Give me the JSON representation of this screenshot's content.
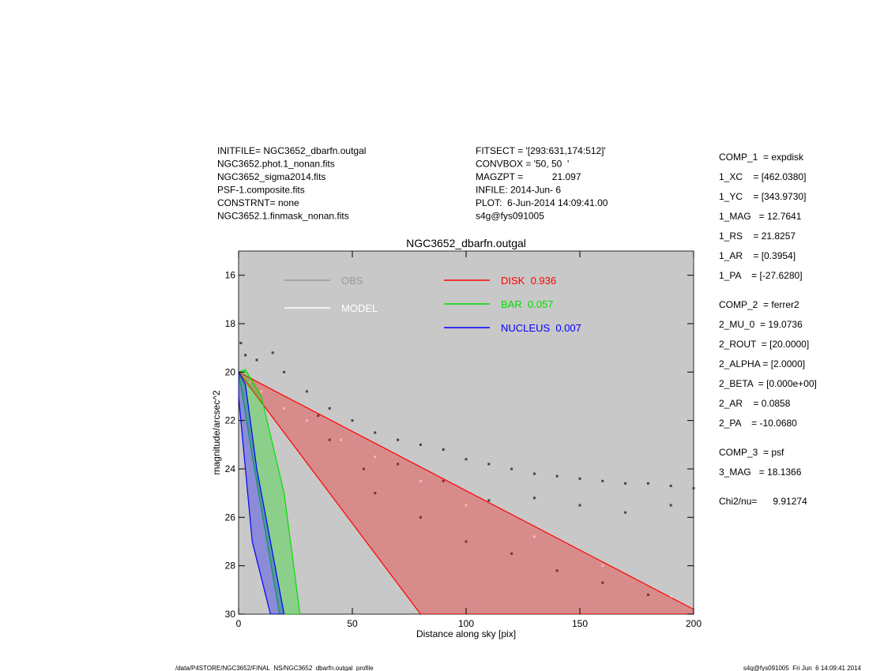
{
  "chart_data": {
    "type": "scatter",
    "title": "NGC3652_dbarfn.outgal",
    "x_label": "Distance along sky [pix]",
    "y_label": "magnitude/arcsec^2",
    "xlim": [
      0,
      200
    ],
    "xticks": [
      0,
      50,
      100,
      150,
      200
    ],
    "ylim": [
      30,
      15
    ],
    "yticks": [
      16,
      18,
      20,
      22,
      24,
      26,
      28,
      30
    ],
    "background": "#c8c8c8",
    "series": [
      {
        "name": "OBS",
        "color": "#444444",
        "legend_color": "#999999",
        "style": "points",
        "x": [
          1,
          3,
          8,
          15,
          20,
          30,
          40,
          50,
          60,
          70,
          80,
          90,
          100,
          110,
          120,
          130,
          140,
          150,
          160,
          170,
          180,
          190,
          200,
          60,
          80,
          100,
          120,
          140,
          160,
          180,
          70,
          90,
          110,
          130,
          150,
          170,
          190,
          40,
          55,
          35
        ],
        "values": [
          18.8,
          19.3,
          19.5,
          19.2,
          20,
          20.8,
          21.5,
          22,
          22.5,
          22.8,
          23,
          23.2,
          23.6,
          23.8,
          24,
          24.2,
          24.3,
          24.4,
          24.5,
          24.6,
          24.6,
          24.7,
          24.8,
          25,
          26,
          27,
          27.5,
          28.2,
          28.7,
          29.2,
          23.8,
          24.5,
          25.3,
          25.2,
          25.5,
          25.8,
          25.5,
          22.8,
          24,
          21.8
        ]
      },
      {
        "name": "MODEL",
        "color": "#ffffff",
        "style": "points",
        "x": [
          5,
          10,
          20,
          30,
          45,
          60,
          80,
          100,
          130,
          160,
          190
        ],
        "values": [
          20.4,
          20.8,
          21.5,
          22,
          22.8,
          23.5,
          24.5,
          25.5,
          26.8,
          28,
          29.3
        ]
      },
      {
        "name": "DISK  0.936",
        "color": "#ff0000",
        "style": "region",
        "x": [
          0,
          80,
          200,
          200
        ],
        "values": [
          20,
          30,
          30,
          29.8
        ]
      },
      {
        "name": "BAR  0.057",
        "color": "#00e000",
        "style": "region",
        "x": [
          0,
          3,
          10,
          20,
          27,
          18,
          7,
          0
        ],
        "values": [
          20,
          19.9,
          21,
          25,
          30,
          30,
          24,
          20
        ]
      },
      {
        "name": "NUCLEUS  0.007",
        "color": "#0000ff",
        "style": "region",
        "x": [
          0,
          3,
          8,
          18,
          20,
          14,
          6,
          0
        ],
        "values": [
          20,
          20.5,
          24,
          29,
          30,
          30,
          27,
          21
        ]
      }
    ],
    "annotations": {
      "left": [
        "INITFILE= NGC3652_dbarfn.outgal",
        "NGC3652.phot.1_nonan.fits",
        "NGC3652_sigma2014.fits",
        "PSF-1.composite.fits",
        "CONSTRNT= none",
        "NGC3652.1.finmask_nonan.fits"
      ],
      "middle": [
        "FITSECT = '[293:631,174:512]'",
        "CONVBOX = '50, 50  '",
        "MAGZPT =           21.097",
        "INFILE: 2014-Jun- 6",
        "PLOT:  6-Jun-2014 14:09:41.00",
        "s4g@fys091005"
      ],
      "right": [
        [
          "COMP_1  = expdisk",
          "1_XC    = [462.0380]",
          "1_YC    = [343.9730]",
          "1_MAG   = 12.7641",
          "1_RS    = 21.8257",
          "1_AR    = [0.3954]",
          "1_PA    = [-27.6280]"
        ],
        [
          "COMP_2  = ferrer2",
          "2_MU_0  = 19.0736",
          "2_ROUT  = [20.0000]",
          "2_ALPHA = [2.0000]",
          "2_BETA  = [0.000e+00]",
          "2_AR    = 0.0858",
          "2_PA    = -10.0680"
        ],
        [
          "COMP_3  = psf",
          "3_MAG   = 18.1366"
        ],
        [
          "Chi2/nu=      9.91274"
        ]
      ],
      "footer_left": "/data/P4STORE/NGC3652/FINAL_NS/NGC3652_dbarfn.outgal_profile",
      "footer_right": "s4g@fys091005  Fri Jun  6 14:09:41 2014"
    }
  }
}
